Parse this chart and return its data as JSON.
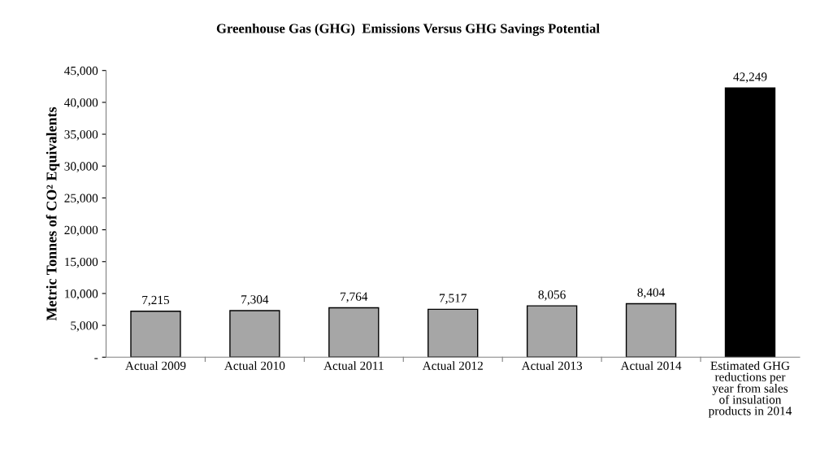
{
  "chart_data": {
    "type": "bar",
    "title": "Greenhouse Gas (GHG)  Emissions Versus GHG Savings Potential",
    "ylabel": "Metric Tonnes of CO² Equivalents",
    "categories": [
      "Actual 2009",
      "Actual 2010",
      "Actual 2011",
      "Actual 2012",
      "Actual 2013",
      "Actual 2014",
      "Estimated GHG\nreductions per\nyear from sales\nof insulation\nproducts in 2014"
    ],
    "values": [
      7215,
      7304,
      7764,
      7517,
      8056,
      8404,
      42249
    ],
    "colors": [
      "#a6a6a6",
      "#a6a6a6",
      "#a6a6a6",
      "#a6a6a6",
      "#a6a6a6",
      "#a6a6a6",
      "#000000"
    ],
    "value_labels": [
      "7,215",
      "7,304",
      "7,764",
      "7,517",
      "8,056",
      "8,404",
      "42,249"
    ],
    "ylim": [
      0,
      45000
    ],
    "yticks": [
      {
        "value": 0,
        "label": "-"
      },
      {
        "value": 5000,
        "label": "5,000"
      },
      {
        "value": 10000,
        "label": "10,000"
      },
      {
        "value": 15000,
        "label": "15,000"
      },
      {
        "value": 20000,
        "label": "20,000"
      },
      {
        "value": 25000,
        "label": "25,000"
      },
      {
        "value": 30000,
        "label": "30,000"
      },
      {
        "value": 35000,
        "label": "35,000"
      },
      {
        "value": 40000,
        "label": "40,000"
      },
      {
        "value": 45000,
        "label": "45,000"
      }
    ],
    "grid": false,
    "legend": false
  }
}
